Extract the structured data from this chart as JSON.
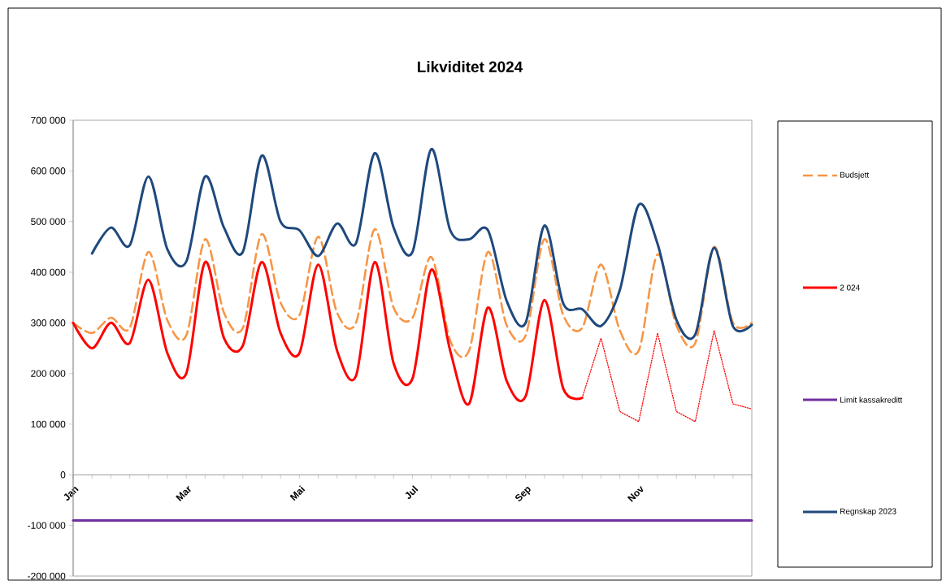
{
  "chart_data": {
    "type": "line",
    "title": "Likviditet 2024",
    "categories": [
      "Jan",
      null,
      null,
      null,
      null,
      null,
      "Mar",
      null,
      null,
      null,
      null,
      null,
      "Mai",
      null,
      null,
      null,
      null,
      null,
      "Jul",
      null,
      null,
      null,
      null,
      null,
      "Sep",
      null,
      null,
      null,
      null,
      null,
      "Nov",
      null,
      null,
      null,
      null,
      null,
      null
    ],
    "ylim": [
      -200000,
      700000
    ],
    "yticks": [
      {
        "value": -200000,
        "label": "-200 000"
      },
      {
        "value": -100000,
        "label": "-100 000"
      },
      0,
      {
        "value": 100000,
        "label": "100 000"
      },
      {
        "value": 200000,
        "label": "200 000"
      },
      {
        "value": 300000,
        "label": "300 000"
      },
      {
        "value": 400000,
        "label": "400 000"
      },
      {
        "value": 500000,
        "label": "500 000"
      },
      {
        "value": 600000,
        "label": "600 000"
      },
      {
        "value": 700000,
        "label": "700 000"
      }
    ],
    "legend": "right",
    "grid": false,
    "series": [
      {
        "name": "Budsjett",
        "color": "#f79646",
        "line_style": "dashed",
        "values": [
          300000,
          280000,
          310000,
          290000,
          440000,
          305000,
          275000,
          465000,
          320000,
          290000,
          475000,
          340000,
          315000,
          470000,
          320000,
          300000,
          485000,
          330000,
          310000,
          430000,
          265000,
          245000,
          440000,
          295000,
          275000,
          465000,
          315000,
          290000,
          415000,
          285000,
          245000,
          435000,
          295000,
          260000,
          450000,
          300000,
          300000
        ]
      },
      {
        "name": "2 024",
        "color": "#ff0000",
        "line_style": "solid",
        "values": [
          300000,
          250000,
          300000,
          260000,
          385000,
          240000,
          200000,
          420000,
          270000,
          255000,
          420000,
          280000,
          240000,
          415000,
          245000,
          195000,
          420000,
          220000,
          190000,
          405000,
          245000,
          140000,
          330000,
          185000,
          155000,
          345000,
          170000,
          152000,
          null,
          null,
          null,
          null,
          null,
          null,
          null,
          null,
          null
        ]
      },
      {
        "color": "#ff0000",
        "line_style": "dotted",
        "values": [
          null,
          null,
          null,
          null,
          null,
          null,
          null,
          null,
          null,
          null,
          null,
          null,
          null,
          null,
          null,
          null,
          null,
          null,
          null,
          null,
          null,
          null,
          null,
          null,
          null,
          null,
          null,
          152000,
          270000,
          125000,
          105000,
          280000,
          125000,
          105000,
          285000,
          140000,
          130000
        ]
      },
      {
        "name": "Limit kassakreditt",
        "color": "#7030a0",
        "line_style": "solid",
        "values": [
          -90000,
          -90000,
          -90000,
          -90000,
          -90000,
          -90000,
          -90000,
          -90000,
          -90000,
          -90000,
          -90000,
          -90000,
          -90000,
          -90000,
          -90000,
          -90000,
          -90000,
          -90000,
          -90000,
          -90000,
          -90000,
          -90000,
          -90000,
          -90000,
          -90000,
          -90000,
          -90000,
          -90000,
          -90000,
          -90000,
          -90000,
          -90000,
          -90000,
          -90000,
          -90000,
          -90000,
          -90000
        ]
      },
      {
        "name": "Regnskap 2023",
        "color": "#1f497d",
        "line_style": "solid",
        "values": [
          null,
          437000,
          488000,
          453000,
          589000,
          445000,
          421000,
          589000,
          488000,
          440000,
          630000,
          500000,
          483000,
          432000,
          496000,
          457000,
          635000,
          488000,
          440000,
          643000,
          483000,
          465000,
          483000,
          343000,
          300000,
          492000,
          338000,
          327000,
          294000,
          365000,
          533000,
          456000,
          306000,
          277000,
          448000,
          293000,
          296000
        ]
      }
    ]
  }
}
